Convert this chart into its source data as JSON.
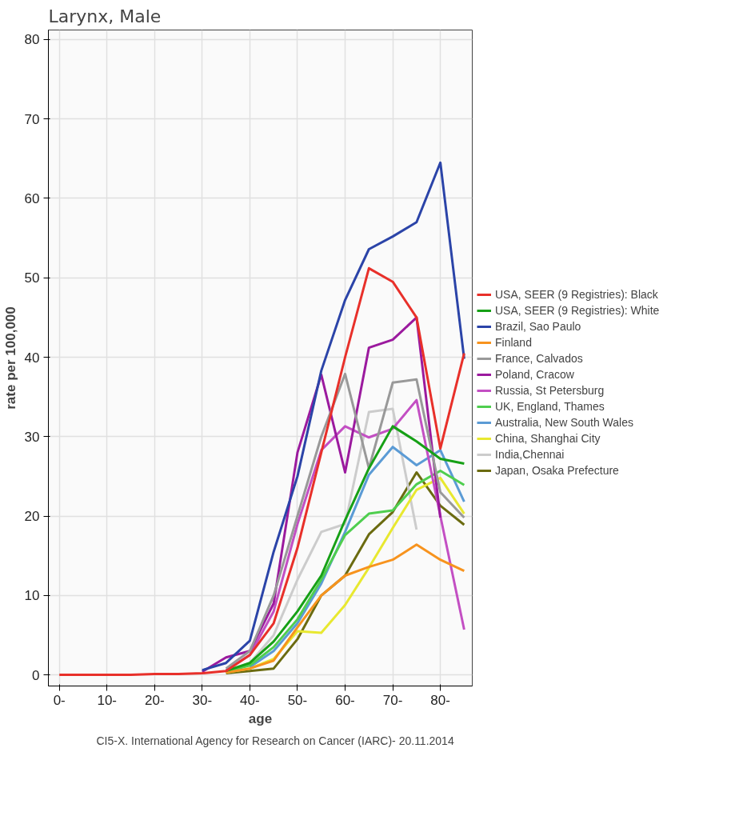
{
  "chart_data": {
    "type": "line",
    "title": "Larynx, Male",
    "xlabel": "age",
    "ylabel": "rate per 100,000",
    "annotations": [
      "CI5-X. International Agency for Research on Cancer (IARC)- 20.11.2014"
    ],
    "x": [
      0,
      5,
      10,
      15,
      20,
      25,
      30,
      35,
      40,
      45,
      50,
      55,
      60,
      65,
      70,
      75,
      80,
      85
    ],
    "xlim": [
      -2.3,
      86.7
    ],
    "xticks": [
      {
        "value": 0,
        "label": "0-"
      },
      {
        "value": 10,
        "label": "10-"
      },
      {
        "value": 20,
        "label": "20-"
      },
      {
        "value": 30,
        "label": "30-"
      },
      {
        "value": 40,
        "label": "40-"
      },
      {
        "value": 50,
        "label": "50-"
      },
      {
        "value": 60,
        "label": "60-"
      },
      {
        "value": 70,
        "label": "70-"
      },
      {
        "value": 80,
        "label": "80-"
      }
    ],
    "ylim": [
      -1.4,
      81.2
    ],
    "yticks": [
      0,
      10,
      20,
      30,
      40,
      50,
      60,
      70,
      80
    ],
    "grid": true,
    "legend": "right",
    "line_style": "solid",
    "marker": "none",
    "series": [
      {
        "name": "USA, SEER (9 Registries): Black",
        "color": "#e8302a",
        "values": [
          0,
          0,
          0,
          0,
          0.1,
          0.1,
          0.2,
          0.5,
          2.5,
          6.5,
          16,
          28,
          40,
          51.2,
          49.5,
          45,
          28.5,
          40.5
        ]
      },
      {
        "name": "USA, SEER (9 Registries): White",
        "color": "#16a016",
        "values": [
          null,
          null,
          null,
          null,
          null,
          null,
          null,
          0.5,
          1.5,
          4.2,
          8,
          12.5,
          19.5,
          26,
          31.3,
          29.4,
          27.2,
          26.6
        ]
      },
      {
        "name": "Brazil, Sao Paulo",
        "color": "#2b44a8",
        "values": [
          null,
          null,
          null,
          null,
          null,
          null,
          0.6,
          1.5,
          4.3,
          15.5,
          25,
          38.3,
          47.2,
          53.6,
          55.2,
          57,
          64.5,
          39.8
        ]
      },
      {
        "name": "Finland",
        "color": "#f7931e",
        "values": [
          null,
          null,
          null,
          null,
          null,
          null,
          null,
          0.3,
          0.8,
          1.8,
          6,
          10,
          12.5,
          13.6,
          14.5,
          16.4,
          14.5,
          13.1
        ]
      },
      {
        "name": "France, Calvados",
        "color": "#999999",
        "values": [
          null,
          null,
          null,
          null,
          null,
          null,
          null,
          0.8,
          3,
          10,
          20,
          30,
          37.9,
          26,
          36.8,
          37.2,
          23,
          19.8
        ]
      },
      {
        "name": "Poland, Cracow",
        "color": "#9b1a9e",
        "values": [
          null,
          null,
          null,
          null,
          null,
          null,
          0.4,
          2.2,
          3,
          9,
          28,
          37.8,
          25.5,
          41.2,
          42.2,
          45,
          19.8,
          null
        ]
      },
      {
        "name": "Russia, St Petersburg",
        "color": "#c34fc3",
        "values": [
          null,
          null,
          null,
          null,
          null,
          null,
          null,
          0.6,
          2.5,
          8,
          19,
          28.3,
          31.3,
          29.9,
          31,
          34.6,
          20,
          5.7
        ]
      },
      {
        "name": "UK, England, Thames",
        "color": "#4fce4f",
        "values": [
          null,
          null,
          null,
          null,
          null,
          null,
          null,
          0.4,
          1.2,
          3.5,
          7,
          12,
          17.6,
          20.3,
          20.7,
          24,
          25.7,
          23.9
        ]
      },
      {
        "name": "Australia, New South Wales",
        "color": "#5b9bd5",
        "values": [
          null,
          null,
          null,
          null,
          null,
          null,
          null,
          null,
          1,
          3,
          6.5,
          11.5,
          18,
          25.2,
          28.7,
          26.4,
          28.3,
          21.8
        ]
      },
      {
        "name": "China, Shanghai City",
        "color": "#e8e830",
        "values": [
          null,
          null,
          null,
          null,
          null,
          null,
          null,
          0.3,
          0.8,
          2,
          5.5,
          5.3,
          8.8,
          13.5,
          18.5,
          23.3,
          24.8,
          20.3
        ]
      },
      {
        "name": "India,Chennai",
        "color": "#cccccc",
        "values": [
          null,
          null,
          null,
          null,
          null,
          null,
          null,
          0.5,
          1.5,
          5,
          12,
          18,
          19,
          33.1,
          33.5,
          18.3,
          null,
          null
        ]
      },
      {
        "name": "Japan, Osaka Prefecture",
        "color": "#6b6b10",
        "values": [
          null,
          null,
          null,
          null,
          null,
          null,
          null,
          0.2,
          0.5,
          0.8,
          4.5,
          10,
          12.5,
          17.7,
          20.5,
          25.5,
          21.3,
          18.9
        ]
      }
    ]
  }
}
